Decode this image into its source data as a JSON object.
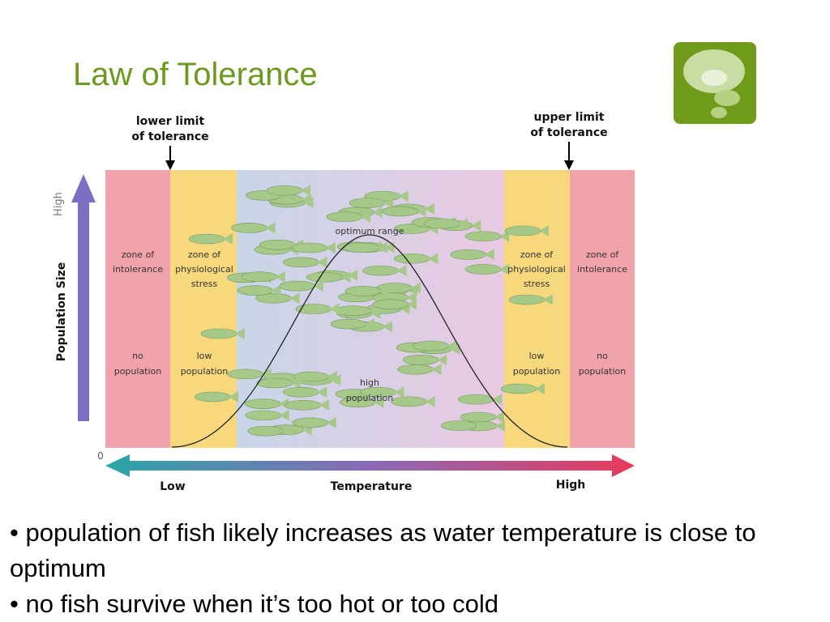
{
  "header": {
    "title": "Law of Tolerance"
  },
  "diagram": {
    "lower_limit": [
      "lower limit",
      "of tolerance"
    ],
    "upper_limit": [
      "upper limit",
      "of tolerance"
    ],
    "y_axis": {
      "high": "High",
      "label": "Population Size",
      "zero": "0"
    },
    "x_axis": {
      "low": "Low",
      "label": "Temperature",
      "high": "High"
    },
    "zones": [
      {
        "name": [
          "zone of",
          "intolerance"
        ],
        "population": [
          "no",
          "population"
        ]
      },
      {
        "name": [
          "zone of",
          "physiological",
          "stress"
        ],
        "population": [
          "low",
          "population"
        ]
      },
      {
        "name": [
          "optimum range"
        ],
        "population": [
          "high",
          "population"
        ]
      },
      {
        "name": [
          "zone of",
          "physiological",
          "stress"
        ],
        "population": [
          "low",
          "population"
        ]
      },
      {
        "name": [
          "zone of",
          "intolerance"
        ],
        "population": [
          "no",
          "population"
        ]
      }
    ]
  },
  "bullets": [
    "• population of fish likely increases as water temperature is close to optimum",
    "• no fish survive when it’s too hot or too cold"
  ]
}
